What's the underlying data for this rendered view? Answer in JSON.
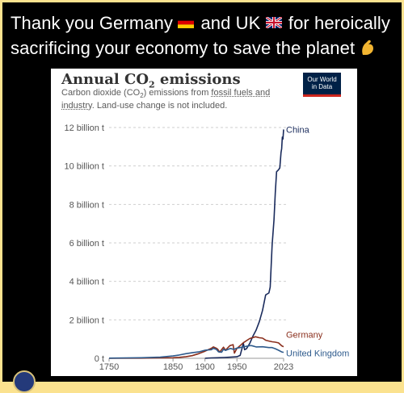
{
  "post": {
    "caption_parts": [
      "Thank you Germany",
      " and UK",
      " for heroically sacrificing your economy to save the planet"
    ],
    "icons": [
      "flag-germany-icon",
      "flag-uk-icon",
      "flexed-biceps-icon"
    ]
  },
  "logo": {
    "line1": "Our World",
    "line2": "in Data"
  },
  "chart_data": {
    "type": "line",
    "title": "Annual CO₂ emissions",
    "subtitle_parts": [
      "Carbon dioxide (CO",
      "2",
      ") emissions from ",
      "fossil fuels and industry",
      ". Land-use change is not included."
    ],
    "y_ticks": [
      {
        "value": 0,
        "label": "0 t"
      },
      {
        "value": 2,
        "label": "2 billion t"
      },
      {
        "value": 4,
        "label": "4 billion t"
      },
      {
        "value": 6,
        "label": "6 billion t"
      },
      {
        "value": 8,
        "label": "8 billion t"
      },
      {
        "value": 10,
        "label": "10 billion t"
      },
      {
        "value": 12,
        "label": "12 billion t"
      }
    ],
    "x_ticks": [
      1750,
      1850,
      1900,
      1950,
      2023
    ],
    "xlim": [
      1750,
      2023
    ],
    "ylim": [
      0,
      12
    ],
    "grid": "horizontal-dashed",
    "series": [
      {
        "name": "China",
        "color": "#1a2b5c",
        "points": [
          [
            1900,
            0.0
          ],
          [
            1910,
            0.02
          ],
          [
            1920,
            0.03
          ],
          [
            1930,
            0.04
          ],
          [
            1940,
            0.06
          ],
          [
            1950,
            0.08
          ],
          [
            1955,
            0.15
          ],
          [
            1960,
            0.78
          ],
          [
            1962,
            0.45
          ],
          [
            1965,
            0.5
          ],
          [
            1970,
            0.77
          ],
          [
            1975,
            1.15
          ],
          [
            1980,
            1.47
          ],
          [
            1985,
            1.9
          ],
          [
            1990,
            2.49
          ],
          [
            1995,
            3.3
          ],
          [
            2000,
            3.4
          ],
          [
            2002,
            3.7
          ],
          [
            2005,
            5.9
          ],
          [
            2008,
            7.2
          ],
          [
            2010,
            8.6
          ],
          [
            2012,
            9.7
          ],
          [
            2015,
            9.8
          ],
          [
            2017,
            9.9
          ],
          [
            2019,
            10.7
          ],
          [
            2020,
            10.9
          ],
          [
            2021,
            11.5
          ],
          [
            2022,
            11.4
          ],
          [
            2023,
            11.9
          ]
        ]
      },
      {
        "name": "Germany",
        "color": "#8a2f1d",
        "points": [
          [
            1750,
            0.0
          ],
          [
            1800,
            0.01
          ],
          [
            1830,
            0.02
          ],
          [
            1850,
            0.03
          ],
          [
            1860,
            0.05
          ],
          [
            1870,
            0.08
          ],
          [
            1880,
            0.14
          ],
          [
            1890,
            0.24
          ],
          [
            1900,
            0.37
          ],
          [
            1910,
            0.52
          ],
          [
            1913,
            0.59
          ],
          [
            1918,
            0.52
          ],
          [
            1920,
            0.47
          ],
          [
            1923,
            0.32
          ],
          [
            1929,
            0.58
          ],
          [
            1932,
            0.42
          ],
          [
            1939,
            0.66
          ],
          [
            1944,
            0.71
          ],
          [
            1946,
            0.27
          ],
          [
            1950,
            0.51
          ],
          [
            1960,
            0.81
          ],
          [
            1970,
            1.03
          ],
          [
            1979,
            1.12
          ],
          [
            1985,
            1.07
          ],
          [
            1990,
            1.05
          ],
          [
            1995,
            0.94
          ],
          [
            2000,
            0.9
          ],
          [
            2005,
            0.86
          ],
          [
            2010,
            0.84
          ],
          [
            2015,
            0.8
          ],
          [
            2020,
            0.65
          ],
          [
            2023,
            0.6
          ]
        ]
      },
      {
        "name": "United Kingdom",
        "color": "#2d5a8c",
        "points": [
          [
            1750,
            0.01
          ],
          [
            1800,
            0.03
          ],
          [
            1830,
            0.06
          ],
          [
            1850,
            0.12
          ],
          [
            1860,
            0.17
          ],
          [
            1870,
            0.24
          ],
          [
            1880,
            0.29
          ],
          [
            1890,
            0.33
          ],
          [
            1900,
            0.42
          ],
          [
            1910,
            0.45
          ],
          [
            1913,
            0.52
          ],
          [
            1918,
            0.46
          ],
          [
            1921,
            0.34
          ],
          [
            1926,
            0.32
          ],
          [
            1929,
            0.47
          ],
          [
            1932,
            0.41
          ],
          [
            1940,
            0.51
          ],
          [
            1945,
            0.46
          ],
          [
            1950,
            0.53
          ],
          [
            1955,
            0.56
          ],
          [
            1960,
            0.59
          ],
          [
            1970,
            0.66
          ],
          [
            1973,
            0.66
          ],
          [
            1980,
            0.59
          ],
          [
            1990,
            0.6
          ],
          [
            2000,
            0.56
          ],
          [
            2005,
            0.56
          ],
          [
            2010,
            0.5
          ],
          [
            2015,
            0.42
          ],
          [
            2020,
            0.33
          ],
          [
            2023,
            0.31
          ]
        ]
      }
    ]
  }
}
